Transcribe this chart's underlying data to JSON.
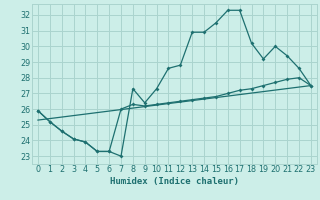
{
  "xlabel": "Humidex (Indice chaleur)",
  "bg_color": "#cceee8",
  "grid_color": "#aad4ce",
  "line_color": "#1e7070",
  "xlim": [
    -0.5,
    23.5
  ],
  "ylim": [
    22.5,
    32.7
  ],
  "xticks": [
    0,
    1,
    2,
    3,
    4,
    5,
    6,
    7,
    8,
    9,
    10,
    11,
    12,
    13,
    14,
    15,
    16,
    17,
    18,
    19,
    20,
    21,
    22,
    23
  ],
  "yticks": [
    23,
    24,
    25,
    26,
    27,
    28,
    29,
    30,
    31,
    32
  ],
  "line1_x": [
    0,
    1,
    2,
    3,
    4,
    5,
    6,
    7,
    8,
    9,
    10,
    11,
    12,
    13,
    14,
    15,
    16,
    17,
    18,
    19,
    20,
    21,
    22,
    23
  ],
  "line1_y": [
    25.9,
    25.2,
    24.6,
    24.1,
    23.9,
    23.3,
    23.3,
    23.0,
    27.3,
    26.4,
    27.3,
    28.6,
    28.8,
    30.9,
    30.9,
    31.5,
    32.3,
    32.3,
    30.2,
    29.2,
    30.0,
    29.4,
    28.6,
    27.5
  ],
  "line2_x": [
    0,
    1,
    2,
    3,
    4,
    5,
    6,
    7,
    8,
    9,
    10,
    11,
    12,
    13,
    14,
    15,
    16,
    17,
    18,
    19,
    20,
    21,
    22,
    23
  ],
  "line2_y": [
    25.9,
    25.2,
    24.6,
    24.1,
    23.9,
    23.3,
    23.3,
    26.0,
    26.3,
    26.2,
    26.3,
    26.4,
    26.5,
    26.6,
    26.7,
    26.8,
    27.0,
    27.2,
    27.3,
    27.5,
    27.7,
    27.9,
    28.0,
    27.5
  ],
  "line3_x": [
    0,
    23
  ],
  "line3_y": [
    25.3,
    27.5
  ]
}
